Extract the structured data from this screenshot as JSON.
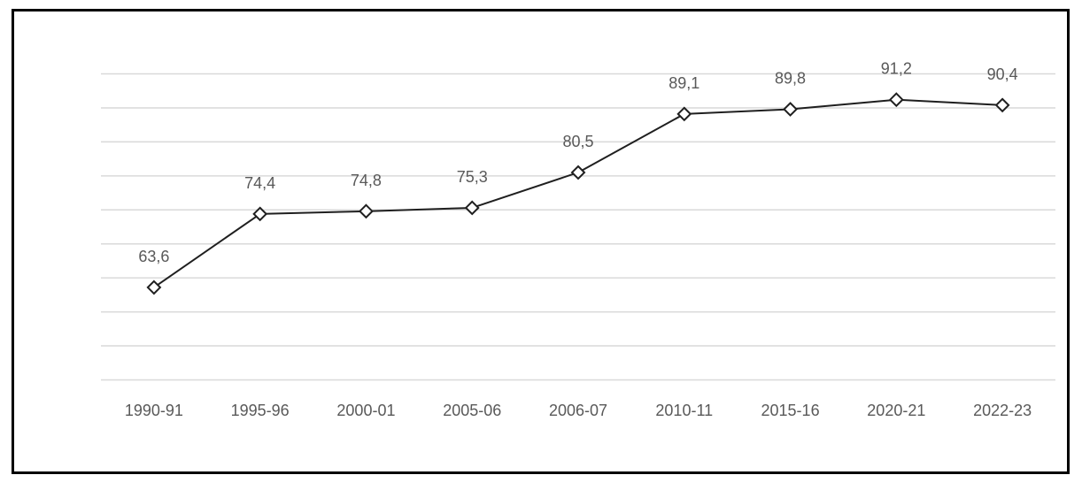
{
  "chart_data": {
    "type": "line",
    "categories": [
      "1990-91",
      "1995-96",
      "2000-01",
      "2005-06",
      "2006-07",
      "2010-11",
      "2015-16",
      "2020-21",
      "2022-23"
    ],
    "values": [
      63.6,
      74.4,
      74.8,
      75.3,
      80.5,
      89.1,
      89.8,
      91.2,
      90.4
    ],
    "data_labels": [
      "63,6",
      "74,4",
      "74,8",
      "75,3",
      "80,5",
      "89,1",
      "89,8",
      "91,2",
      "90,4"
    ],
    "series": [
      {
        "name": "",
        "values": [
          63.6,
          74.4,
          74.8,
          75.3,
          80.5,
          89.1,
          89.8,
          91.2,
          90.4
        ]
      }
    ],
    "title": "",
    "xlabel": "",
    "ylabel": "",
    "ylim": [
      50,
      95
    ],
    "y_gridline_step": 5,
    "grid": true,
    "y_axis_tick_labels_visible": false,
    "legend_position": "none",
    "marker_style": "hollow-diamond",
    "decimal_separator": ",",
    "colors": {
      "line": "#1f1f1f",
      "marker_fill": "#ffffff",
      "marker_stroke": "#1f1f1f",
      "gridline": "#d9d9d9",
      "label_text": "#595959",
      "frame_border": "#000000",
      "background": "#ffffff"
    }
  }
}
